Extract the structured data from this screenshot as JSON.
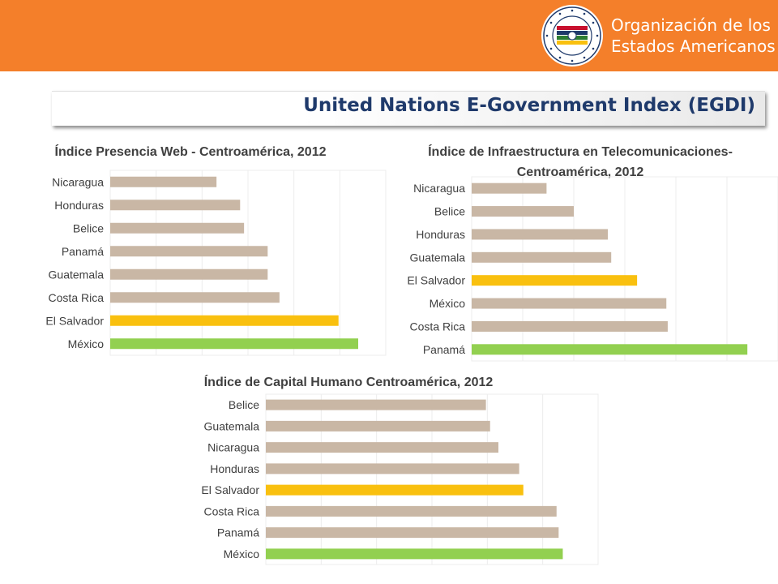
{
  "header": {
    "org_name_line1": "Organización de los",
    "org_name_line2": "Estados Americanos",
    "logo_icon": "oas-seal-icon",
    "background": "#f47f2a"
  },
  "slide_title": "United Nations E-Government Index (EGDI)",
  "colors": {
    "default_bar": "#c9b7a5",
    "highlight_bar": "#f9c00f",
    "top_bar": "#92d050",
    "title_text": "#1f3a6b"
  },
  "chart_data": [
    {
      "type": "bar",
      "orientation": "horizontal",
      "title": [
        "Índice Presencia Web - Centroamérica, 2012"
      ],
      "categories": [
        "Nicaragua",
        "Honduras",
        "Belice",
        "Panamá",
        "Guatemala",
        "Costa Rica",
        "El Salvador",
        "México"
      ],
      "values": [
        0.27,
        0.33,
        0.34,
        0.4,
        0.4,
        0.43,
        0.58,
        0.63
      ],
      "bar_colors": [
        "#c9b7a5",
        "#c9b7a5",
        "#c9b7a5",
        "#c9b7a5",
        "#c9b7a5",
        "#c9b7a5",
        "#f9c00f",
        "#92d050"
      ],
      "xlim": [
        0,
        0.7
      ],
      "grid": true
    },
    {
      "type": "bar",
      "orientation": "horizontal",
      "title": [
        "Índice de Infraestructura en Telecomunicaciones-",
        "Centroamérica, 2012"
      ],
      "categories": [
        "Nicaragua",
        "Belice",
        "Honduras",
        "Guatemala",
        "El Salvador",
        "México",
        "Costa Rica",
        "Panamá"
      ],
      "values": [
        0.11,
        0.15,
        0.2,
        0.205,
        0.243,
        0.286,
        0.288,
        0.405
      ],
      "bar_colors": [
        "#c9b7a5",
        "#c9b7a5",
        "#c9b7a5",
        "#c9b7a5",
        "#f9c00f",
        "#c9b7a5",
        "#c9b7a5",
        "#92d050"
      ],
      "xlim": [
        0,
        0.45
      ],
      "grid": true
    },
    {
      "type": "bar",
      "orientation": "horizontal",
      "title": [
        "Índice de Capital Humano Centroamérica, 2012"
      ],
      "categories": [
        "Belice",
        "Guatemala",
        "Nicaragua",
        "Honduras",
        "El Salvador",
        "Costa Rica",
        "Panamá",
        "México"
      ],
      "values": [
        0.53,
        0.54,
        0.56,
        0.61,
        0.62,
        0.7,
        0.705,
        0.715
      ],
      "bar_colors": [
        "#c9b7a5",
        "#c9b7a5",
        "#c9b7a5",
        "#c9b7a5",
        "#f9c00f",
        "#c9b7a5",
        "#c9b7a5",
        "#92d050"
      ],
      "xlim": [
        0,
        0.8
      ],
      "grid": true
    }
  ]
}
